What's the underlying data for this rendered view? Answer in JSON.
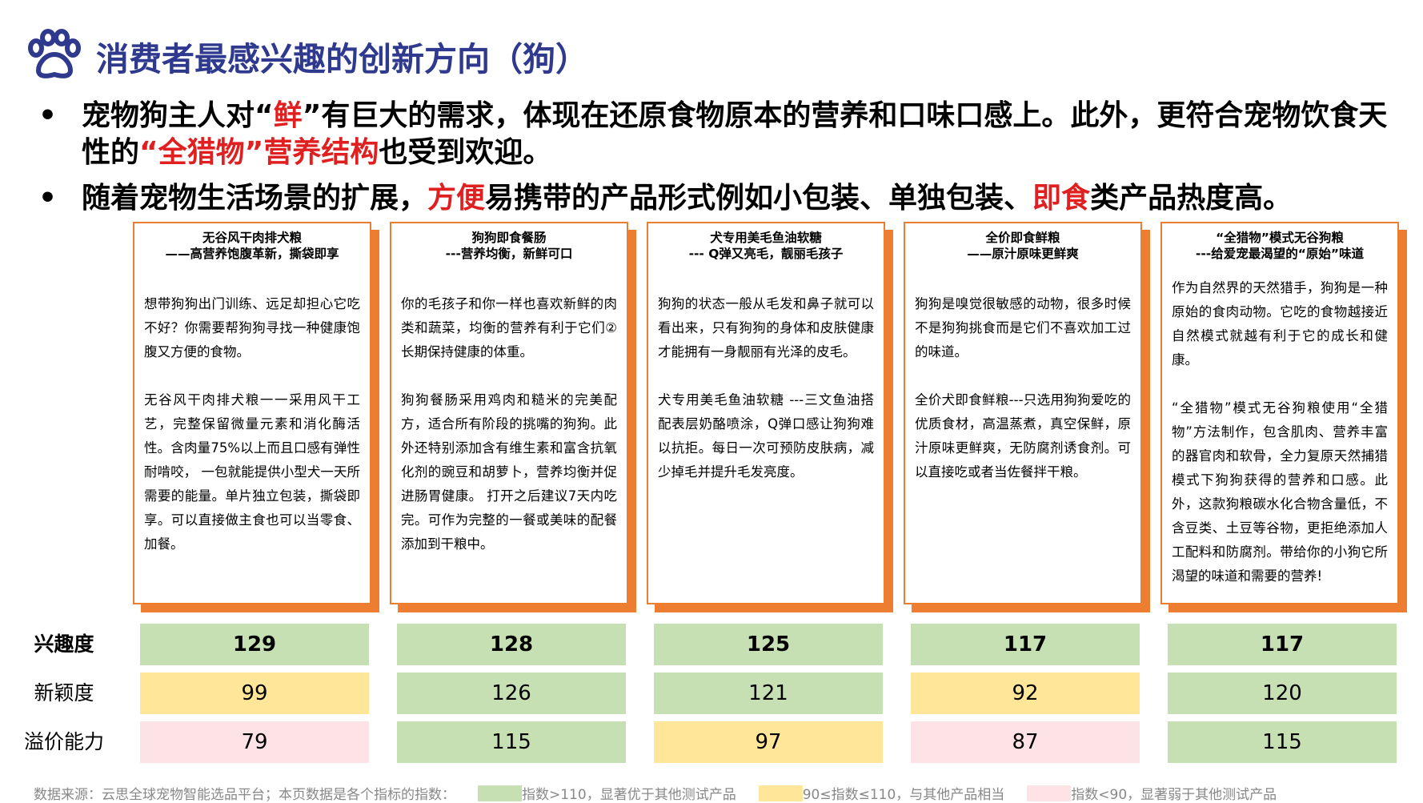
{
  "title": "消费者最感兴趣的创新方向（狗）",
  "bullets": [
    {
      "marker": "•",
      "segments": [
        {
          "text": "宠物狗主人对“",
          "red": false
        },
        {
          "text": "鲜",
          "red": true
        },
        {
          "text": "”有巨大的需求，体现在还原食物原本的营养和口味口感上。此外，更符合宠物饮食天性的",
          "red": false
        },
        {
          "text": "“全猎物”营养结构",
          "red": true
        },
        {
          "text": "也受到欢迎。",
          "red": false
        }
      ]
    },
    {
      "marker": "•",
      "segments": [
        {
          "text": "随着宠物生活场景的扩展，",
          "red": false
        },
        {
          "text": "方便",
          "red": true
        },
        {
          "text": "易携带的产品形式例如小包装、单独包装、",
          "red": false
        },
        {
          "text": "即食",
          "red": true
        },
        {
          "text": "类产品热度高。",
          "red": false
        }
      ]
    }
  ],
  "cards": [
    {
      "title": "无谷风干肉排犬粮",
      "subtitle": "——高营养饱腹革新，撕袋即享",
      "paragraphs": [
        "想带狗狗出门训练、远足却担心它吃不好？你需要帮狗狗寻找一种健康饱腹又方便的食物。",
        "无谷风干肉排犬粮一一采用风干工艺，完整保留微量元素和消化酶活性。含肉量75%以上而且口感有弹性耐啃咬， 一包就能提供小型犬一天所需要的能量。单片独立包装，撕袋即享。可以直接做主食也可以当零食、加餐。"
      ]
    },
    {
      "title": "狗狗即食餐肠",
      "subtitle": "---营养均衡，新鲜可口",
      "paragraphs": [
        "你的毛孩子和你一样也喜欢新鲜的肉类和蔬菜，均衡的营养有利于它们②长期保持健康的体重。",
        "狗狗餐肠采用鸡肉和糙米的完美配方，适合所有阶段的挑嘴的狗狗。此外还特别添加含有维生素和富含抗氧化剂的豌豆和胡萝卜，营养均衡并促进肠胃健康。 打开之后建议7天内吃完。可作为完整的一餐或美味的配餐添加到干粮中。"
      ]
    },
    {
      "title": "犬专用美毛鱼油软糖",
      "subtitle": "--- Q弹又亮毛，靓丽毛孩子",
      "paragraphs": [
        "狗狗的状态一般从毛发和鼻子就可以看出来，只有狗狗的身体和皮肤健康才能拥有一身靓丽有光泽的皮毛。",
        "犬专用美毛鱼油软糖 ---三文鱼油搭配表层奶酪喷涂，Q弹口感让狗狗难以抗拒。每日一次可预防皮肤病，减少掉毛并提升毛发亮度。"
      ]
    },
    {
      "title": "全价即食鲜粮",
      "subtitle": "——原汁原味更鲜爽",
      "paragraphs": [
        "狗狗是嗅觉很敏感的动物，很多时候不是狗狗挑食而是它们不喜欢加工过的味道。",
        "全价犬即食鲜粮---只选用狗狗爱吃的优质食材，高温蒸煮，真空保鲜，原汁原味更鲜爽，无防腐剂诱食剂。可以直接吃或者当佐餐拌干粮。"
      ]
    },
    {
      "title": "“全猎物”模式无谷狗粮",
      "subtitle": "---给爱宠最渴望的“原始”味道",
      "paragraphs": [
        "作为自然界的天然猎手，狗狗是一种原始的食肉动物。它吃的食物越接近自然模式就越有利于它的成长和健康。",
        "“全猎物”模式无谷狗粮使用“全猎物”方法制作，包含肌肉、营养丰富的器官肉和软骨，全力复原天然捕猎模式下狗狗获得的营养和口感。此外，这款狗粮碳水化合物含量低，不含豆类、土豆等谷物，更拒绝添加人工配料和防腐剂。带给你的小狗它所渴望的味道和需要的营养!"
      ]
    }
  ],
  "metrics": [
    {
      "label": "兴趣度",
      "bold": true,
      "values": [
        129,
        128,
        125,
        117,
        117
      ],
      "colors": [
        "#c6e0b4",
        "#c6e0b4",
        "#c6e0b4",
        "#c6e0b4",
        "#c6e0b4"
      ]
    },
    {
      "label": "新颖度",
      "bold": false,
      "values": [
        99,
        126,
        121,
        92,
        120
      ],
      "colors": [
        "#ffe699",
        "#c6e0b4",
        "#c6e0b4",
        "#ffe699",
        "#c6e0b4"
      ]
    },
    {
      "label": "溢价能力",
      "bold": false,
      "values": [
        79,
        115,
        97,
        87,
        115
      ],
      "colors": [
        "#fde3e5",
        "#c6e0b4",
        "#ffe699",
        "#fde3e5",
        "#c6e0b4"
      ]
    }
  ],
  "source": "数据来源：云思全球宠物智能选品平台；本页数据是各个指标的指数：",
  "legend": [
    {
      "color": "#c6e0b4",
      "label": "指数>110，显著优于其他测试产品"
    },
    {
      "color": "#ffe699",
      "label": "90≤指数≤110，与其他产品相当"
    },
    {
      "color": "#fde3e5",
      "label": "指数<90，显著弱于其他测试产品"
    }
  ]
}
